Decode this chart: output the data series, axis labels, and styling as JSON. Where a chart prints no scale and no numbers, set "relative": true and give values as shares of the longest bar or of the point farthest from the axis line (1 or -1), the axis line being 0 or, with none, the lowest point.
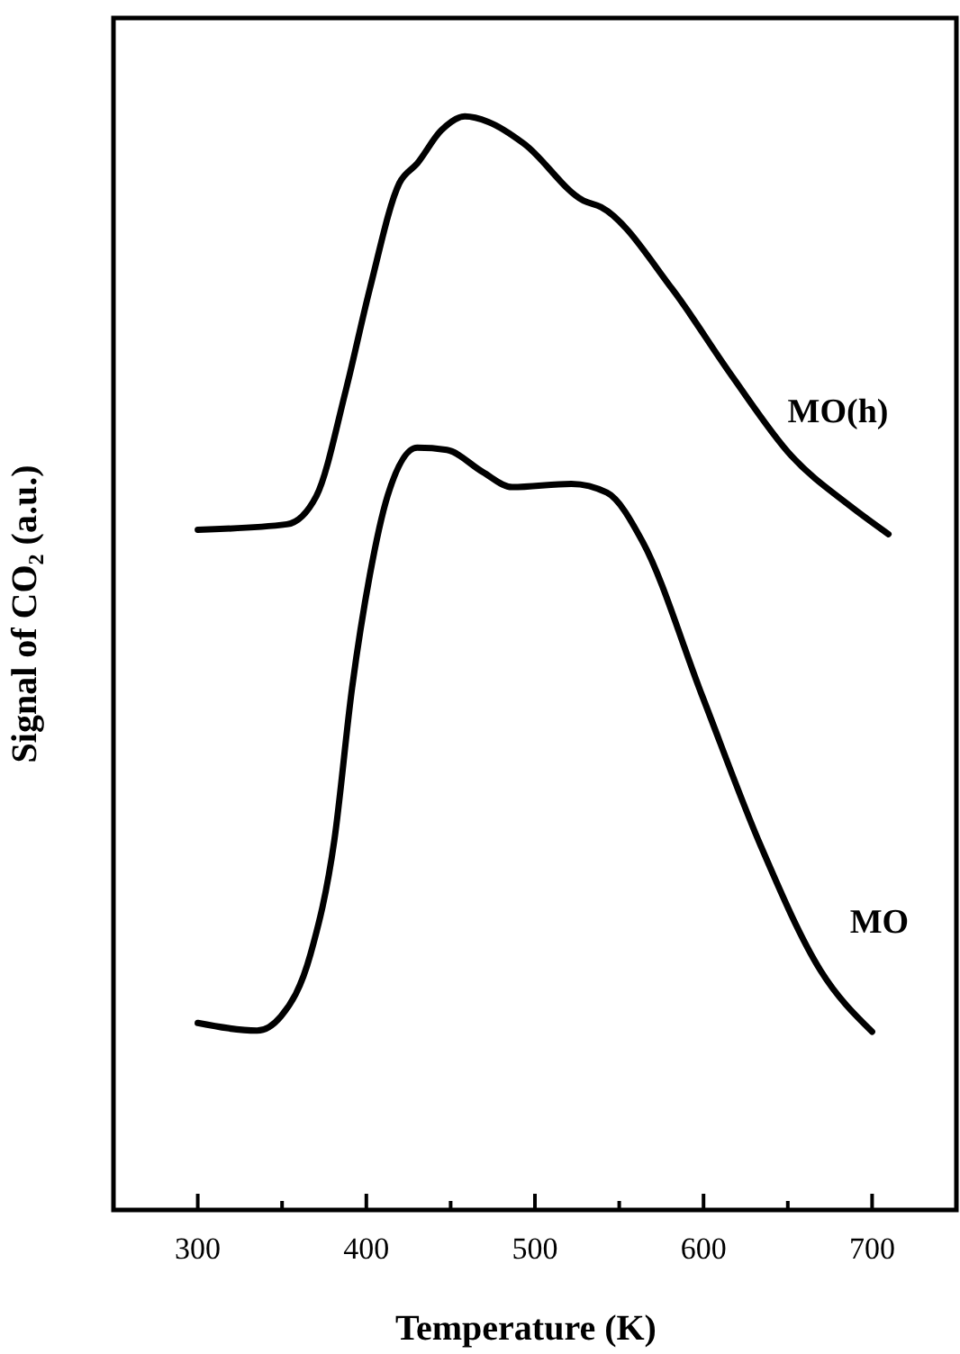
{
  "chart_data": {
    "type": "line",
    "relative": true,
    "xlabel": "Temperature (K)",
    "ylabel": "Signal of CO₂ (a.u.)",
    "xlim": [
      250,
      750
    ],
    "xticks": [
      300,
      {
        "value": 350,
        "label": null
      },
      400,
      {
        "value": 450,
        "label": null
      },
      500,
      {
        "value": 550,
        "label": null
      },
      600,
      {
        "value": 650,
        "label": null
      },
      700
    ],
    "marker": "none",
    "line_style": "solid",
    "series": [
      {
        "name": "MO(h)",
        "color": "#000000",
        "x": [
          300,
          352.8,
          370.4,
          387.9,
          402,
          419.6,
          430.2,
          444.3,
          458.4,
          472.4,
          493.6,
          528.8,
          539.3,
          581.5,
          616.7,
          651.9,
          686.8,
          709.7
        ],
        "values": [
          0.622,
          0.627,
          0.653,
          0.75,
          0.842,
          0.939,
          0.957,
          0.987,
          1,
          0.995,
          0.975,
          0.923,
          0.917,
          0.842,
          0.763,
          0.69,
          0.644,
          0.618
        ]
      },
      {
        "name": "MO",
        "color": "#000000",
        "x": [
          300,
          335.2,
          349.3,
          366.9,
          381,
          391.5,
          402,
          412.6,
          430.2,
          447.8,
          468.9,
          486.5,
          521.6,
          542.7,
          563.9,
          599,
          634.2,
          669.4,
          700
        ],
        "values": [
          0.171,
          0.164,
          0.177,
          0.234,
          0.338,
          0.477,
          0.58,
          0.653,
          0.697,
          0.695,
          0.675,
          0.661,
          0.664,
          0.656,
          0.611,
          0.471,
          0.332,
          0.219,
          0.163
        ]
      }
    ]
  }
}
